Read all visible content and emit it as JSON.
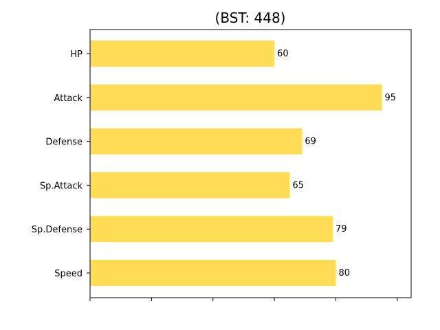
{
  "chart_data": {
    "type": "bar",
    "orientation": "horizontal",
    "title": "(BST: 448)",
    "xlabel": "",
    "ylabel": "",
    "categories": [
      "HP",
      "Attack",
      "Defense",
      "Sp.Attack",
      "Sp.Defense",
      "Speed"
    ],
    "values": [
      60,
      95,
      69,
      65,
      79,
      80
    ],
    "data_labels": [
      "60",
      "95",
      "69",
      "65",
      "79",
      "80"
    ],
    "xlim": [
      0,
      104.5
    ],
    "x_ticks": [
      0,
      20,
      40,
      60,
      80,
      100
    ],
    "x_tick_labels_visible": false,
    "bar_color": "#FFDC55",
    "grid": false,
    "legend": "none"
  }
}
